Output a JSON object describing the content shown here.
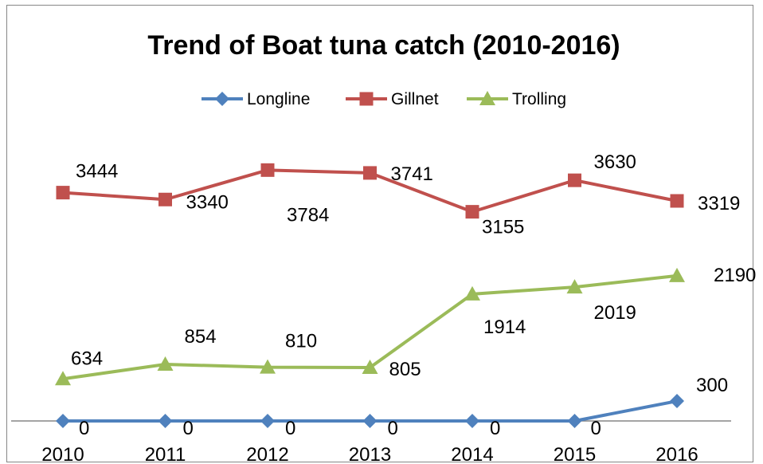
{
  "chart_data": {
    "type": "line",
    "title": "Trend of Boat tuna catch (2010-2016)",
    "xlabel": "",
    "ylabel": "",
    "categories": [
      "2010",
      "2011",
      "2012",
      "2013",
      "2014",
      "2015",
      "2016"
    ],
    "series": [
      {
        "name": "Longline",
        "values": [
          0,
          0,
          0,
          0,
          0,
          0,
          300
        ],
        "color": "#4F81BD",
        "marker": "diamond"
      },
      {
        "name": "Gillnet",
        "values": [
          3444,
          3340,
          3784,
          3741,
          3155,
          3630,
          3319
        ],
        "color": "#C0504D",
        "marker": "square"
      },
      {
        "name": "Trolling",
        "values": [
          634,
          854,
          810,
          805,
          1914,
          2019,
          2190
        ],
        "color": "#9BBB59",
        "marker": "triangle"
      }
    ],
    "legend_position": "top",
    "gridlines": false
  }
}
